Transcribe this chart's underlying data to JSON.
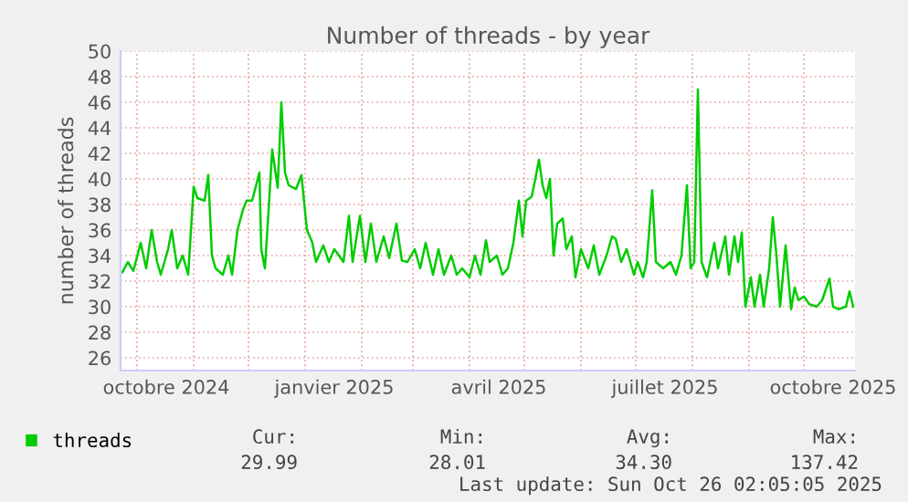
{
  "chart_data": {
    "type": "line",
    "title": "Number of threads - by year",
    "ylabel": "number of threads",
    "x": [
      "2024-09-23",
      "2024-09-26",
      "2024-09-29",
      "2024-10-03",
      "2024-10-06",
      "2024-10-09",
      "2024-10-12",
      "2024-10-14",
      "2024-10-18",
      "2024-10-20",
      "2024-10-23",
      "2024-10-26",
      "2024-10-29",
      "2024-11-01",
      "2024-11-03",
      "2024-11-07",
      "2024-11-09",
      "2024-11-11",
      "2024-11-13",
      "2024-11-17",
      "2024-11-20",
      "2024-11-22",
      "2024-11-25",
      "2024-11-28",
      "2024-11-30",
      "2024-12-03",
      "2024-12-07",
      "2024-12-08",
      "2024-12-10",
      "2024-12-12",
      "2024-12-14",
      "2024-12-17",
      "2024-12-19",
      "2024-12-21",
      "2024-12-23",
      "2024-12-27",
      "2024-12-30",
      "2025-01-02",
      "2025-01-05",
      "2025-01-07",
      "2025-01-11",
      "2025-01-14",
      "2025-01-17",
      "2025-01-22",
      "2025-01-25",
      "2025-01-27",
      "2025-01-31",
      "2025-02-03",
      "2025-02-06",
      "2025-02-09",
      "2025-02-13",
      "2025-02-16",
      "2025-02-20",
      "2025-02-23",
      "2025-02-26",
      "2025-03-02",
      "2025-03-05",
      "2025-03-08",
      "2025-03-12",
      "2025-03-15",
      "2025-03-18",
      "2025-03-22",
      "2025-03-25",
      "2025-03-28",
      "2025-04-01",
      "2025-04-04",
      "2025-04-07",
      "2025-04-10",
      "2025-04-12",
      "2025-04-16",
      "2025-04-19",
      "2025-04-22",
      "2025-04-25",
      "2025-04-28",
      "2025-04-30",
      "2025-05-02",
      "2025-05-05",
      "2025-05-07",
      "2025-05-09",
      "2025-05-11",
      "2025-05-13",
      "2025-05-15",
      "2025-05-17",
      "2025-05-19",
      "2025-05-22",
      "2025-05-24",
      "2025-05-27",
      "2025-05-29",
      "2025-06-01",
      "2025-06-05",
      "2025-06-08",
      "2025-06-11",
      "2025-06-15",
      "2025-06-18",
      "2025-06-20",
      "2025-06-23",
      "2025-06-26",
      "2025-06-30",
      "2025-07-02",
      "2025-07-05",
      "2025-07-07",
      "2025-07-10",
      "2025-07-12",
      "2025-07-16",
      "2025-07-20",
      "2025-07-23",
      "2025-07-26",
      "2025-07-29",
      "2025-07-31",
      "2025-08-02",
      "2025-08-04",
      "2025-08-06",
      "2025-08-09",
      "2025-08-13",
      "2025-08-15",
      "2025-08-19",
      "2025-08-21",
      "2025-08-24",
      "2025-08-26",
      "2025-08-28",
      "2025-08-30",
      "2025-09-02",
      "2025-09-04",
      "2025-09-07",
      "2025-09-09",
      "2025-09-12",
      "2025-09-14",
      "2025-09-16",
      "2025-09-18",
      "2025-09-21",
      "2025-09-24",
      "2025-09-26",
      "2025-09-28",
      "2025-10-01",
      "2025-10-04",
      "2025-10-08",
      "2025-10-11",
      "2025-10-15",
      "2025-10-17",
      "2025-10-20",
      "2025-10-24",
      "2025-10-26",
      "2025-10-28"
    ],
    "series": [
      {
        "name": "threads",
        "color": "#00cc00",
        "values": [
          32.7,
          33.5,
          32.8,
          35,
          33,
          36,
          33.5,
          32.5,
          34.5,
          36,
          33,
          34,
          32.5,
          39.4,
          38.5,
          38.3,
          40.3,
          34,
          33,
          32.5,
          34,
          32.5,
          36,
          37.6,
          38.3,
          38.3,
          40.5,
          34.5,
          33,
          37.5,
          42.3,
          39.3,
          46,
          40.5,
          39.5,
          39.2,
          40.3,
          36,
          35,
          33.5,
          34.8,
          33.5,
          34.5,
          33.5,
          37.1,
          33.5,
          37.1,
          33.5,
          36.5,
          33.5,
          35.5,
          33.8,
          36.5,
          33.6,
          33.5,
          34.5,
          33,
          35,
          32.5,
          34.5,
          32.5,
          34,
          32.5,
          33,
          32.3,
          34,
          32.5,
          35.2,
          33.5,
          34,
          32.5,
          33,
          35,
          38.3,
          35.5,
          38.3,
          38.6,
          40,
          41.5,
          39.5,
          38.5,
          40,
          34,
          36.5,
          36.9,
          34.5,
          35.5,
          32.3,
          34.5,
          33,
          34.8,
          32.5,
          34,
          35.5,
          35.3,
          33.5,
          34.5,
          32.5,
          33.5,
          32.3,
          33.5,
          39.1,
          33.5,
          33,
          33.5,
          32.5,
          34,
          39.5,
          33,
          33.5,
          47,
          33.5,
          32.3,
          35,
          33,
          35.5,
          32.5,
          35.5,
          33.5,
          35.8,
          30,
          32.3,
          30,
          32.5,
          30,
          33,
          37,
          34,
          30,
          34.8,
          29.8,
          31.5,
          30.5,
          30.8,
          30.2,
          30,
          30.5,
          32.2,
          30,
          29.8,
          30,
          31.2,
          30
        ]
      }
    ],
    "xlim": [
      "2024-09-22",
      "2025-10-29"
    ],
    "xticks": [
      {
        "value": "2024-10-01",
        "label": null
      },
      {
        "value": "2024-10-17",
        "label": "octobre 2024"
      },
      {
        "value": "2024-11-01",
        "label": null
      },
      {
        "value": "2024-12-01",
        "label": null
      },
      {
        "value": "2025-01-01",
        "label": null
      },
      {
        "value": "2025-01-17",
        "label": "janvier 2025"
      },
      {
        "value": "2025-02-01",
        "label": null
      },
      {
        "value": "2025-03-01",
        "label": null
      },
      {
        "value": "2025-04-01",
        "label": null
      },
      {
        "value": "2025-04-17",
        "label": "avril 2025"
      },
      {
        "value": "2025-05-01",
        "label": null
      },
      {
        "value": "2025-06-01",
        "label": null
      },
      {
        "value": "2025-07-01",
        "label": null
      },
      {
        "value": "2025-07-17",
        "label": "juillet 2025"
      },
      {
        "value": "2025-08-01",
        "label": null
      },
      {
        "value": "2025-09-01",
        "label": null
      },
      {
        "value": "2025-10-01",
        "label": null
      },
      {
        "value": "2025-10-17",
        "label": "octobre 2025"
      }
    ],
    "ylim": [
      25,
      50
    ],
    "yticks": [
      26,
      28,
      30,
      32,
      34,
      36,
      38,
      40,
      42,
      44,
      46,
      48,
      50
    ],
    "grid": true,
    "legend": "bottom",
    "annotations": [
      "Cur:",
      "29.99",
      "Min:",
      "28.01",
      "Avg:",
      "34.30",
      "Max:",
      "137.42",
      "Last update: Sun Oct 26 02:05:05 2025"
    ]
  }
}
